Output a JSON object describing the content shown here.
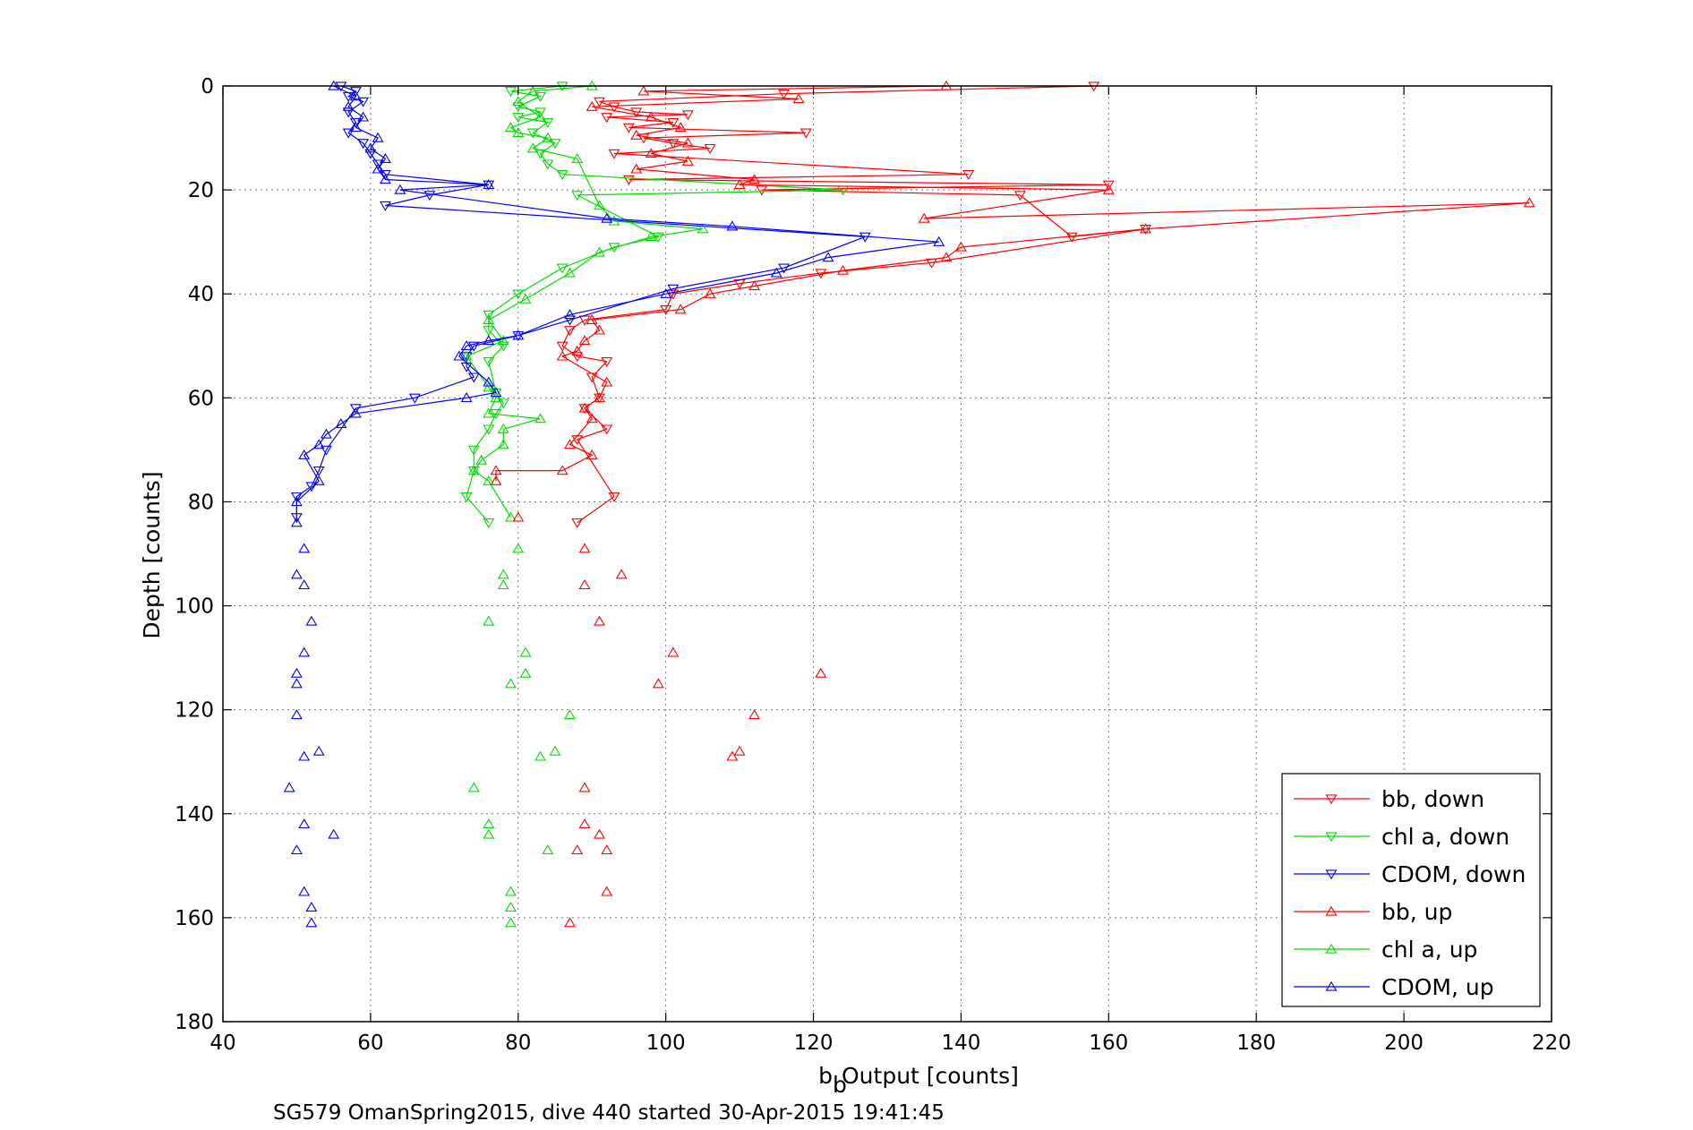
{
  "chart_data": {
    "type": "line",
    "title": "",
    "xlabel_main": "b",
    "xlabel_sub": "b",
    "xlabel_rest": " Output [counts]",
    "ylabel": "Depth [counts]",
    "caption": "SG579 OmanSpring2015, dive 440 started 30-Apr-2015 19:41:45",
    "xlim": [
      40,
      220
    ],
    "ylim": [
      0,
      180
    ],
    "y_reversed": true,
    "grid": true,
    "legend_position": "bottom-right",
    "x_ticks": [
      "40",
      "60",
      "80",
      "100",
      "120",
      "140",
      "160",
      "180",
      "200",
      "220"
    ],
    "y_ticks": [
      "0",
      "20",
      "40",
      "60",
      "80",
      "100",
      "120",
      "140",
      "160",
      "180"
    ],
    "series": [
      {
        "name": "bb, down",
        "color": "#ff0000",
        "marker": "down",
        "line": true,
        "points": [
          [
            158,
            0
          ],
          [
            116,
            1.5
          ],
          [
            91,
            3
          ],
          [
            93,
            4
          ],
          [
            96,
            5
          ],
          [
            103,
            5.5
          ],
          [
            92,
            6
          ],
          [
            101,
            7
          ],
          [
            95,
            8
          ],
          [
            119,
            9
          ],
          [
            97,
            10
          ],
          [
            101,
            11
          ],
          [
            106,
            12
          ],
          [
            93,
            13
          ],
          [
            141,
            17
          ],
          [
            95,
            18
          ],
          [
            160,
            19
          ],
          [
            113,
            20
          ],
          [
            148,
            21
          ],
          [
            155,
            29
          ],
          [
            165,
            27.5
          ],
          [
            136,
            34
          ],
          [
            121,
            36
          ],
          [
            110,
            38
          ],
          [
            101,
            40
          ],
          [
            100,
            43
          ],
          [
            89,
            45
          ],
          [
            87,
            47
          ],
          [
            86,
            50
          ],
          [
            88,
            52
          ],
          [
            92,
            53
          ],
          [
            90,
            56
          ],
          [
            91,
            60
          ],
          [
            89,
            62
          ],
          [
            92,
            66
          ],
          [
            88,
            68
          ],
          [
            93,
            79
          ],
          [
            88,
            84
          ]
        ]
      },
      {
        "name": "chl a, down",
        "color": "#00dd00",
        "marker": "down",
        "line": true,
        "points": [
          [
            86,
            0
          ],
          [
            79,
            1
          ],
          [
            83,
            2
          ],
          [
            80,
            4
          ],
          [
            83,
            5
          ],
          [
            80,
            6
          ],
          [
            84,
            7
          ],
          [
            82,
            9
          ],
          [
            85,
            11
          ],
          [
            83,
            13
          ],
          [
            84,
            15
          ],
          [
            86,
            17
          ],
          [
            124,
            20
          ],
          [
            88,
            21
          ],
          [
            99,
            29
          ],
          [
            93,
            31
          ],
          [
            86,
            35
          ],
          [
            80,
            40
          ],
          [
            76,
            44
          ],
          [
            76,
            47
          ],
          [
            78,
            50
          ],
          [
            76,
            53
          ],
          [
            77,
            59
          ],
          [
            78,
            61
          ],
          [
            77,
            63
          ],
          [
            76,
            66
          ],
          [
            74,
            70
          ],
          [
            74,
            74
          ],
          [
            73,
            79
          ],
          [
            76,
            84
          ]
        ]
      },
      {
        "name": "CDOM, down",
        "color": "#0000ff",
        "marker": "down",
        "line": true,
        "points": [
          [
            56,
            0
          ],
          [
            58,
            1
          ],
          [
            57,
            2
          ],
          [
            59,
            3
          ],
          [
            57,
            5
          ],
          [
            58,
            7
          ],
          [
            57,
            9
          ],
          [
            59,
            11
          ],
          [
            60,
            13
          ],
          [
            61,
            15
          ],
          [
            62,
            17
          ],
          [
            76,
            19
          ],
          [
            68,
            21
          ],
          [
            62,
            23
          ],
          [
            127,
            29
          ],
          [
            116,
            35
          ],
          [
            101,
            39
          ],
          [
            87,
            45
          ],
          [
            80,
            48
          ],
          [
            74,
            50
          ],
          [
            73,
            52
          ],
          [
            73,
            54
          ],
          [
            74,
            56
          ],
          [
            66,
            60
          ],
          [
            58,
            62
          ],
          [
            54,
            70
          ],
          [
            53,
            74
          ],
          [
            52,
            77
          ],
          [
            50,
            79
          ],
          [
            50,
            83
          ]
        ]
      },
      {
        "name": "bb, up",
        "color": "#ff0000",
        "marker": "up",
        "line": true,
        "points": [
          [
            138,
            0
          ],
          [
            97,
            1
          ],
          [
            118,
            2.5
          ],
          [
            90,
            4
          ],
          [
            98,
            6
          ],
          [
            102,
            8
          ],
          [
            96,
            9.5
          ],
          [
            103,
            11
          ],
          [
            98,
            13
          ],
          [
            103,
            14.5
          ],
          [
            96,
            16
          ],
          [
            112,
            18
          ],
          [
            110,
            19
          ],
          [
            160,
            20
          ],
          [
            135,
            25.5
          ],
          [
            217,
            22.5
          ],
          [
            165,
            27.5
          ],
          [
            140,
            31
          ],
          [
            138,
            33
          ],
          [
            124,
            35.5
          ],
          [
            112,
            38.5
          ],
          [
            106,
            40
          ],
          [
            102,
            43
          ],
          [
            90,
            45
          ],
          [
            91,
            47
          ],
          [
            89,
            49
          ],
          [
            88,
            51
          ],
          [
            86,
            52
          ],
          [
            92,
            57
          ],
          [
            91,
            60
          ],
          [
            89,
            62
          ],
          [
            90,
            64
          ],
          [
            87,
            69
          ],
          [
            90,
            71
          ],
          [
            86,
            74
          ],
          [
            77,
            74
          ],
          [
            77,
            76
          ]
        ]
      },
      {
        "name": "chl a, up",
        "color": "#00dd00",
        "marker": "up",
        "line": true,
        "points": [
          [
            90,
            0
          ],
          [
            82,
            1
          ],
          [
            80,
            3
          ],
          [
            83,
            6
          ],
          [
            79,
            8
          ],
          [
            80,
            9
          ],
          [
            84,
            10
          ],
          [
            82,
            12
          ],
          [
            88,
            14
          ],
          [
            91,
            23
          ],
          [
            93,
            26
          ],
          [
            105,
            27.5
          ],
          [
            98,
            29
          ],
          [
            91,
            32
          ],
          [
            87,
            36
          ],
          [
            81,
            41
          ],
          [
            76,
            45
          ],
          [
            78,
            49
          ],
          [
            73,
            52
          ],
          [
            76,
            58
          ],
          [
            77,
            60
          ],
          [
            76,
            63
          ],
          [
            83,
            64
          ],
          [
            78,
            66
          ],
          [
            78,
            69
          ],
          [
            75,
            72
          ],
          [
            74,
            74
          ],
          [
            76,
            76
          ],
          [
            79,
            83
          ]
        ]
      },
      {
        "name": "CDOM, up",
        "color": "#0000ff",
        "marker": "up",
        "line": true,
        "points": [
          [
            55,
            0
          ],
          [
            58,
            2
          ],
          [
            57,
            4
          ],
          [
            59,
            6
          ],
          [
            58,
            8
          ],
          [
            61,
            10
          ],
          [
            60,
            12
          ],
          [
            62,
            14
          ],
          [
            61,
            16
          ],
          [
            62,
            18
          ],
          [
            76,
            19
          ],
          [
            64,
            20
          ],
          [
            92,
            25.5
          ],
          [
            109,
            27
          ],
          [
            137,
            30
          ],
          [
            122,
            33
          ],
          [
            115,
            36
          ],
          [
            100,
            40
          ],
          [
            87,
            44
          ],
          [
            80,
            48
          ],
          [
            76,
            49
          ],
          [
            73,
            50
          ],
          [
            72,
            52
          ],
          [
            76,
            57
          ],
          [
            77,
            59
          ],
          [
            73,
            60
          ],
          [
            58,
            63
          ],
          [
            56,
            65
          ],
          [
            54,
            67
          ],
          [
            53,
            69
          ],
          [
            51,
            71
          ],
          [
            53,
            76
          ],
          [
            50,
            80
          ],
          [
            50,
            84
          ]
        ]
      },
      {
        "name": "",
        "color": "#ff0000",
        "marker": "up",
        "line": false,
        "points": [
          [
            80,
            83
          ],
          [
            89,
            89
          ],
          [
            94,
            94
          ],
          [
            89,
            96
          ],
          [
            91,
            103
          ],
          [
            101,
            109
          ],
          [
            121,
            113
          ],
          [
            99,
            115
          ],
          [
            112,
            121
          ],
          [
            110,
            128
          ],
          [
            109,
            129
          ],
          [
            89,
            135
          ],
          [
            89,
            142
          ],
          [
            91,
            144
          ],
          [
            92,
            147
          ],
          [
            88,
            147
          ],
          [
            92,
            155
          ],
          [
            87,
            161
          ]
        ]
      },
      {
        "name": "",
        "color": "#00dd00",
        "marker": "up",
        "line": false,
        "points": [
          [
            80,
            89
          ],
          [
            78,
            94
          ],
          [
            78,
            96
          ],
          [
            76,
            103
          ],
          [
            81,
            109
          ],
          [
            81,
            113
          ],
          [
            79,
            115
          ],
          [
            87,
            121
          ],
          [
            85,
            128
          ],
          [
            83,
            129
          ],
          [
            74,
            135
          ],
          [
            76,
            142
          ],
          [
            76,
            144
          ],
          [
            84,
            147
          ],
          [
            79,
            155
          ],
          [
            79,
            158
          ],
          [
            79,
            161
          ]
        ]
      },
      {
        "name": "",
        "color": "#0000ff",
        "marker": "up",
        "line": false,
        "points": [
          [
            51,
            89
          ],
          [
            50,
            94
          ],
          [
            51,
            96
          ],
          [
            52,
            103
          ],
          [
            51,
            109
          ],
          [
            50,
            113
          ],
          [
            50,
            115
          ],
          [
            50,
            121
          ],
          [
            53,
            128
          ],
          [
            51,
            129
          ],
          [
            49,
            135
          ],
          [
            51,
            142
          ],
          [
            55,
            144
          ],
          [
            50,
            147
          ],
          [
            51,
            155
          ],
          [
            52,
            158
          ],
          [
            52,
            161
          ]
        ]
      }
    ]
  }
}
